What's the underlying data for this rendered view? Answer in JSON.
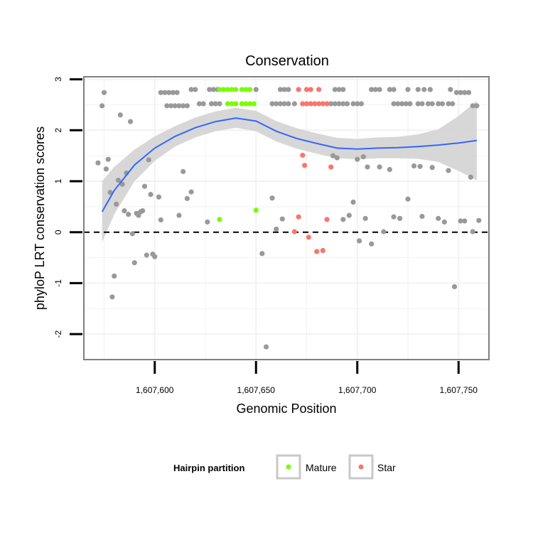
{
  "chart_data": {
    "type": "scatter",
    "title": "Conservation",
    "xlabel": "Genomic Position",
    "ylabel": "phyloP LRT conservation scores",
    "xlim": [
      1607565,
      1607765
    ],
    "ylim": [
      -2.5,
      3.05
    ],
    "x_ticks": [
      1607600,
      1607650,
      1607700,
      1607750
    ],
    "x_tick_labels": [
      "1,607,600",
      "1,607,650",
      "1,607,700",
      "1,607,750"
    ],
    "y_ticks": [
      -2,
      -1,
      0,
      1,
      2,
      3
    ],
    "y_tick_labels": [
      "-2",
      "-1",
      "0",
      "1",
      "2",
      "3"
    ],
    "grid": true,
    "reference_line": {
      "y": 0,
      "style": "dashed"
    },
    "legend": {
      "title": "Hairpin partition",
      "placement": "bottom",
      "entries": [
        {
          "label": "Mature",
          "color": "#7cfc00"
        },
        {
          "label": "Star",
          "color": "#f8766d"
        }
      ]
    },
    "colors": {
      "other": "#999999",
      "smooth": "#3366ff",
      "band": "#d3d3d3"
    },
    "smooth_curve": [
      {
        "x": 1607574,
        "y": 0.4,
        "lo": -0.2,
        "hi": 1.0
      },
      {
        "x": 1607580,
        "y": 0.82,
        "lo": 0.35,
        "hi": 1.28
      },
      {
        "x": 1607590,
        "y": 1.32,
        "lo": 1.0,
        "hi": 1.62
      },
      {
        "x": 1607600,
        "y": 1.65,
        "lo": 1.4,
        "hi": 1.88
      },
      {
        "x": 1607610,
        "y": 1.88,
        "lo": 1.68,
        "hi": 2.08
      },
      {
        "x": 1607620,
        "y": 2.05,
        "lo": 1.86,
        "hi": 2.25
      },
      {
        "x": 1607630,
        "y": 2.17,
        "lo": 1.98,
        "hi": 2.37
      },
      {
        "x": 1607640,
        "y": 2.24,
        "lo": 2.05,
        "hi": 2.44
      },
      {
        "x": 1607650,
        "y": 2.18,
        "lo": 1.98,
        "hi": 2.38
      },
      {
        "x": 1607660,
        "y": 1.98,
        "lo": 1.78,
        "hi": 2.18
      },
      {
        "x": 1607670,
        "y": 1.84,
        "lo": 1.64,
        "hi": 2.04
      },
      {
        "x": 1607680,
        "y": 1.74,
        "lo": 1.54,
        "hi": 1.94
      },
      {
        "x": 1607690,
        "y": 1.65,
        "lo": 1.45,
        "hi": 1.85
      },
      {
        "x": 1607700,
        "y": 1.63,
        "lo": 1.43,
        "hi": 1.83
      },
      {
        "x": 1607710,
        "y": 1.65,
        "lo": 1.45,
        "hi": 1.86
      },
      {
        "x": 1607720,
        "y": 1.66,
        "lo": 1.45,
        "hi": 1.87
      },
      {
        "x": 1607730,
        "y": 1.68,
        "lo": 1.44,
        "hi": 1.92
      },
      {
        "x": 1607740,
        "y": 1.71,
        "lo": 1.38,
        "hi": 2.02
      },
      {
        "x": 1607750,
        "y": 1.75,
        "lo": 1.2,
        "hi": 2.28
      },
      {
        "x": 1607759,
        "y": 1.8,
        "lo": 1.02,
        "hi": 2.58
      }
    ],
    "series": [
      {
        "name": "Mature",
        "color": "#7cfc00",
        "points": [
          [
            1607632,
            2.8
          ],
          [
            1607634,
            2.8
          ],
          [
            1607636,
            2.8
          ],
          [
            1607638,
            2.8
          ],
          [
            1607640,
            2.8
          ],
          [
            1607643,
            2.8
          ],
          [
            1607645,
            2.8
          ],
          [
            1607647,
            2.8
          ],
          [
            1607636,
            2.52
          ],
          [
            1607638,
            2.52
          ],
          [
            1607640,
            2.52
          ],
          [
            1607643,
            2.52
          ],
          [
            1607645,
            2.52
          ],
          [
            1607647,
            2.52
          ],
          [
            1607649,
            2.52
          ],
          [
            1607632,
            0.25
          ],
          [
            1607650,
            0.43
          ]
        ]
      },
      {
        "name": "Star",
        "color": "#f8766d",
        "points": [
          [
            1607671,
            2.8
          ],
          [
            1607675,
            2.8
          ],
          [
            1607677,
            2.8
          ],
          [
            1607681,
            2.8
          ],
          [
            1607673,
            2.52
          ],
          [
            1607675,
            2.52
          ],
          [
            1607677,
            2.52
          ],
          [
            1607679,
            2.52
          ],
          [
            1607681,
            2.52
          ],
          [
            1607683,
            2.52
          ],
          [
            1607685,
            2.52
          ],
          [
            1607673,
            1.51
          ],
          [
            1607674,
            1.31
          ],
          [
            1607687,
            1.28
          ],
          [
            1607671,
            0.3
          ],
          [
            1607685,
            0.25
          ],
          [
            1607669,
            0.01
          ],
          [
            1607676,
            -0.1
          ],
          [
            1607680,
            -0.38
          ],
          [
            1607683,
            -0.36
          ]
        ]
      },
      {
        "points": [
          [
            1607572,
            1.36
          ],
          [
            1607574,
            2.48
          ],
          [
            1607575,
            2.74
          ],
          [
            1607576,
            1.24
          ],
          [
            1607577,
            1.43
          ],
          [
            1607578,
            0.78
          ],
          [
            1607579,
            -1.27
          ],
          [
            1607580,
            -0.86
          ],
          [
            1607581,
            0.55
          ],
          [
            1607582,
            1.02
          ],
          [
            1607583,
            2.3
          ],
          [
            1607584,
            0.94
          ],
          [
            1607585,
            0.42
          ],
          [
            1607586,
            1.16
          ],
          [
            1607587,
            0.35
          ],
          [
            1607588,
            2.17
          ],
          [
            1607589,
            -0.03
          ],
          [
            1607590,
            -0.6
          ],
          [
            1607591,
            0.37
          ],
          [
            1607592,
            0.33
          ],
          [
            1607593,
            0.4
          ],
          [
            1607594,
            0.42
          ],
          [
            1607595,
            0.9
          ],
          [
            1607596,
            -0.45
          ],
          [
            1607597,
            1.42
          ],
          [
            1607598,
            0.74
          ],
          [
            1607599,
            -0.43
          ],
          [
            1607600,
            -0.48
          ],
          [
            1607602,
            0.69
          ],
          [
            1607603,
            0.24
          ],
          [
            1607603,
            2.74
          ],
          [
            1607605,
            2.74
          ],
          [
            1607607,
            2.74
          ],
          [
            1607609,
            2.74
          ],
          [
            1607611,
            2.74
          ],
          [
            1607606,
            2.48
          ],
          [
            1607608,
            2.48
          ],
          [
            1607610,
            2.48
          ],
          [
            1607612,
            2.48
          ],
          [
            1607614,
            2.48
          ],
          [
            1607616,
            2.48
          ],
          [
            1607612,
            0.33
          ],
          [
            1607614,
            1.19
          ],
          [
            1607616,
            0.66
          ],
          [
            1607618,
            0.79
          ],
          [
            1607618,
            2.8
          ],
          [
            1607620,
            2.8
          ],
          [
            1607622,
            2.52
          ],
          [
            1607624,
            2.52
          ],
          [
            1607626,
            0.2
          ],
          [
            1607627,
            2.8
          ],
          [
            1607629,
            2.8
          ],
          [
            1607631,
            2.8
          ],
          [
            1607628,
            2.52
          ],
          [
            1607630,
            2.52
          ],
          [
            1607632,
            2.52
          ],
          [
            1607650,
            2.8
          ],
          [
            1607653,
            -0.42
          ],
          [
            1607655,
            -2.25
          ],
          [
            1607658,
            0.67
          ],
          [
            1607660,
            0.06
          ],
          [
            1607662,
            2.8
          ],
          [
            1607664,
            2.8
          ],
          [
            1607666,
            2.8
          ],
          [
            1607658,
            2.52
          ],
          [
            1607660,
            2.52
          ],
          [
            1607662,
            2.52
          ],
          [
            1607664,
            2.52
          ],
          [
            1607666,
            2.52
          ],
          [
            1607669,
            2.52
          ],
          [
            1607663,
            0.26
          ],
          [
            1607689,
            2.8
          ],
          [
            1607691,
            2.8
          ],
          [
            1607693,
            2.8
          ],
          [
            1607687,
            2.52
          ],
          [
            1607689,
            2.52
          ],
          [
            1607691,
            2.52
          ],
          [
            1607693,
            2.52
          ],
          [
            1607695,
            2.52
          ],
          [
            1607698,
            2.52
          ],
          [
            1607700,
            2.52
          ],
          [
            1607702,
            2.52
          ],
          [
            1607688,
            1.5
          ],
          [
            1607690,
            1.46
          ],
          [
            1607693,
            0.25
          ],
          [
            1607696,
            0.33
          ],
          [
            1607698,
            0.59
          ],
          [
            1607700,
            1.43
          ],
          [
            1607701,
            -0.17
          ],
          [
            1607703,
            1.48
          ],
          [
            1607704,
            0.27
          ],
          [
            1607705,
            1.28
          ],
          [
            1607707,
            -0.23
          ],
          [
            1607707,
            2.8
          ],
          [
            1607709,
            2.8
          ],
          [
            1607711,
            2.8
          ],
          [
            1607711,
            1.28
          ],
          [
            1607713,
            0.01
          ],
          [
            1607716,
            2.8
          ],
          [
            1607718,
            2.8
          ],
          [
            1607718,
            2.52
          ],
          [
            1607720,
            2.52
          ],
          [
            1607722,
            2.52
          ],
          [
            1607724,
            2.52
          ],
          [
            1607726,
            2.52
          ],
          [
            1607716,
            1.23
          ],
          [
            1607718,
            0.3
          ],
          [
            1607721,
            0.27
          ],
          [
            1607725,
            0.65
          ],
          [
            1607728,
            1.3
          ],
          [
            1607731,
            1.29
          ],
          [
            1607725,
            2.8
          ],
          [
            1607730,
            2.8
          ],
          [
            1607733,
            2.8
          ],
          [
            1607736,
            2.8
          ],
          [
            1607730,
            2.52
          ],
          [
            1607732,
            2.52
          ],
          [
            1607735,
            2.52
          ],
          [
            1607737,
            2.52
          ],
          [
            1607740,
            2.52
          ],
          [
            1607742,
            2.52
          ],
          [
            1607737,
            1.27
          ],
          [
            1607740,
            0.27
          ],
          [
            1607743,
            0.2
          ],
          [
            1607746,
            2.8
          ],
          [
            1607749,
            2.74
          ],
          [
            1607751,
            2.74
          ],
          [
            1607753,
            2.74
          ],
          [
            1607755,
            2.74
          ],
          [
            1607745,
            2.52
          ],
          [
            1607747,
            2.52
          ],
          [
            1607757,
            2.48
          ],
          [
            1607759,
            2.48
          ],
          [
            1607745,
            1.21
          ],
          [
            1607748,
            -1.07
          ],
          [
            1607751,
            0.22
          ],
          [
            1607753,
            0.22
          ],
          [
            1607756,
            1.08
          ],
          [
            1607757,
            0.01
          ],
          [
            1607760,
            0.23
          ],
          [
            1607732,
            0.31
          ]
        ]
      }
    ]
  }
}
